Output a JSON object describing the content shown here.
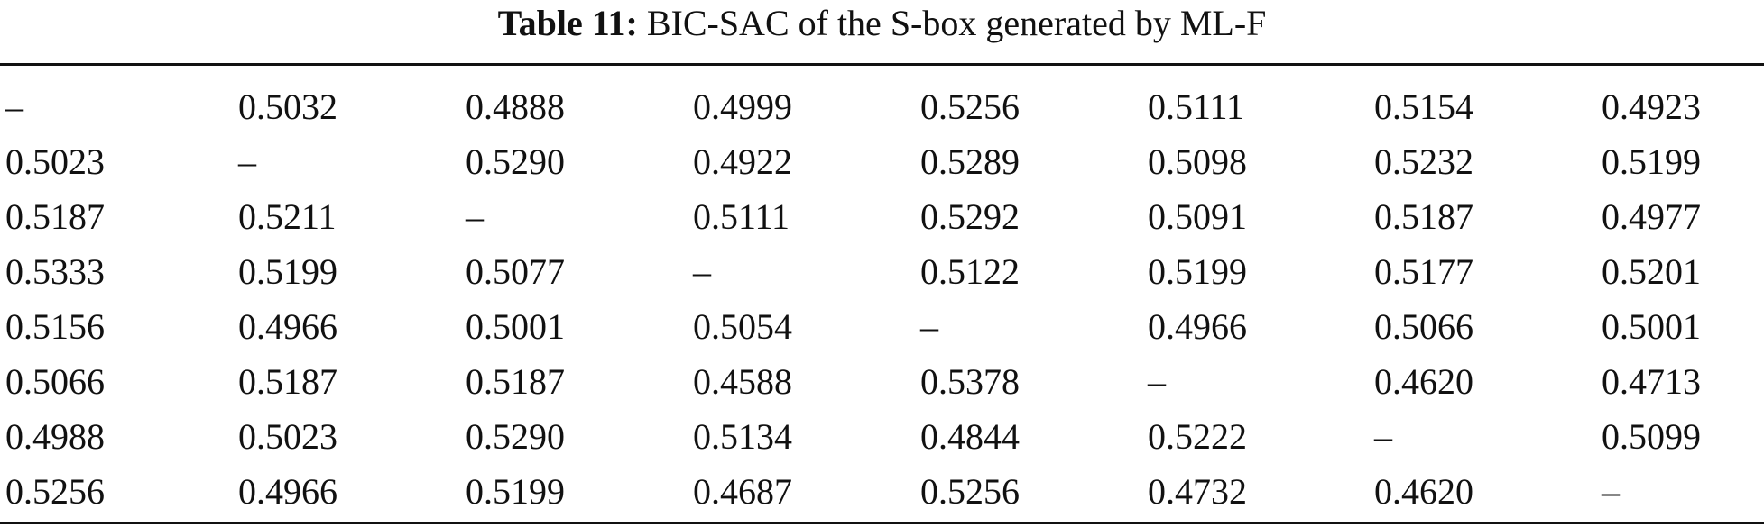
{
  "caption": {
    "label": "Table 11:",
    "text": "BIC-SAC of the S-box generated by ML-F"
  },
  "table": {
    "rows": [
      [
        "–",
        "0.5032",
        "0.4888",
        "0.4999",
        "0.5256",
        "0.5111",
        "0.5154",
        "0.4923"
      ],
      [
        "0.5023",
        "–",
        "0.5290",
        "0.4922",
        "0.5289",
        "0.5098",
        "0.5232",
        "0.5199"
      ],
      [
        "0.5187",
        "0.5211",
        "–",
        "0.5111",
        "0.5292",
        "0.5091",
        "0.5187",
        "0.4977"
      ],
      [
        "0.5333",
        "0.5199",
        "0.5077",
        "–",
        "0.5122",
        "0.5199",
        "0.5177",
        "0.5201"
      ],
      [
        "0.5156",
        "0.4966",
        "0.5001",
        "0.5054",
        "–",
        "0.4966",
        "0.5066",
        "0.5001"
      ],
      [
        "0.5066",
        "0.5187",
        "0.5187",
        "0.4588",
        "0.5378",
        "–",
        "0.4620",
        "0.4713"
      ],
      [
        "0.4988",
        "0.5023",
        "0.5290",
        "0.5134",
        "0.4844",
        "0.5222",
        "–",
        "0.5099"
      ],
      [
        "0.5256",
        "0.4966",
        "0.5199",
        "0.4687",
        "0.5256",
        "0.4732",
        "0.4620",
        "–"
      ]
    ]
  }
}
